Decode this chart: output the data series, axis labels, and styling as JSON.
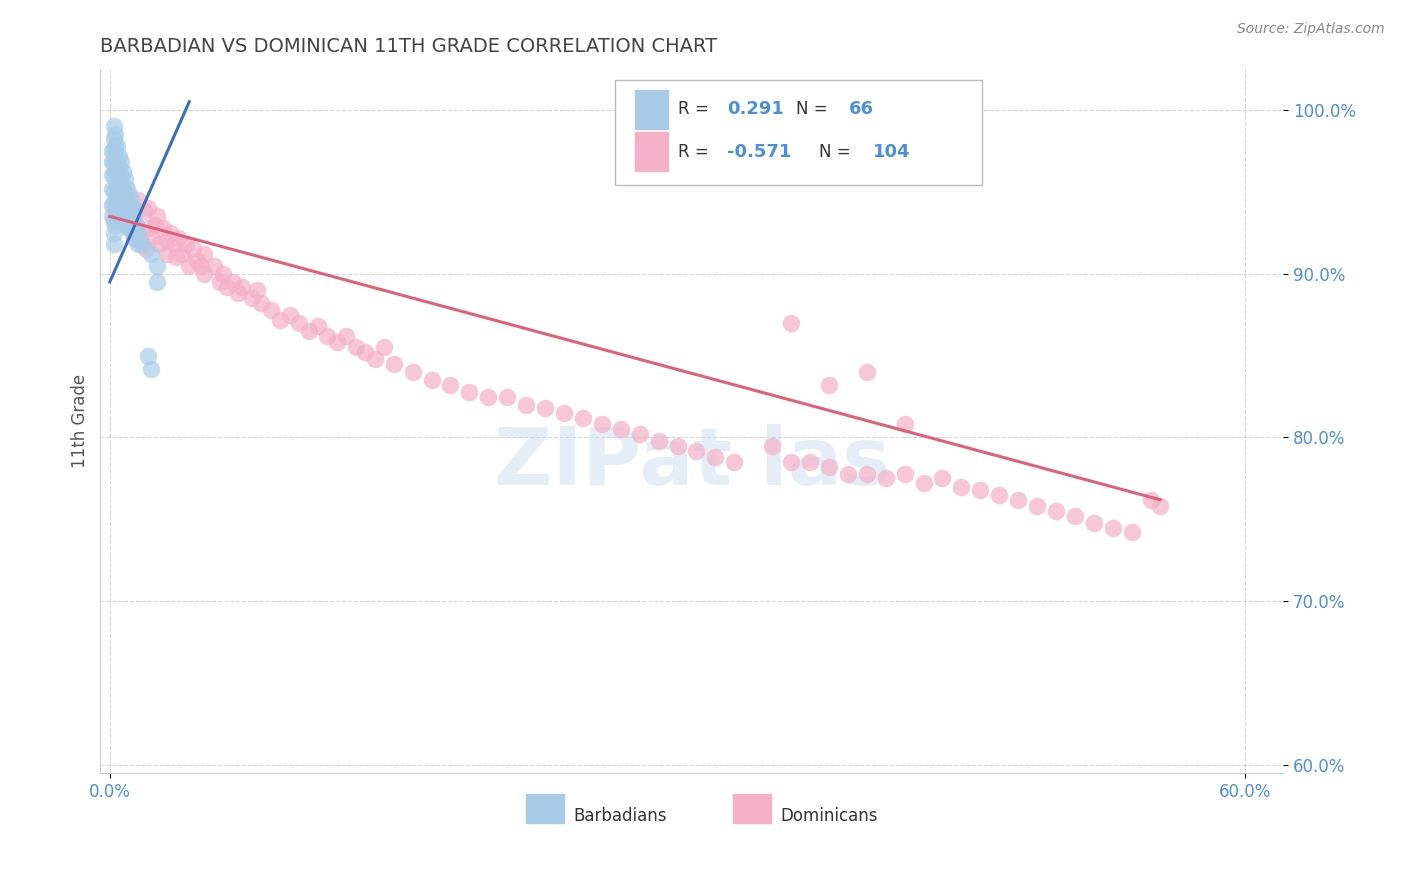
{
  "title": "BARBADIAN VS DOMINICAN 11TH GRADE CORRELATION CHART",
  "ylabel": "11th Grade",
  "source": "Source: ZipAtlas.com",
  "xlim": [
    -0.005,
    0.62
  ],
  "ylim": [
    0.595,
    1.025
  ],
  "x_tick_positions": [
    0.0,
    0.6
  ],
  "x_tick_labels": [
    "0.0%",
    "60.0%"
  ],
  "y_tick_positions": [
    0.6,
    0.7,
    0.8,
    0.9,
    1.0
  ],
  "y_tick_labels": [
    "60.0%",
    "70.0%",
    "80.0%",
    "90.0%",
    "100.0%"
  ],
  "barbadian_color": "#a8cce8",
  "dominican_color": "#f4b0c8",
  "trend_blue": "#3a6fbf",
  "trend_pink": "#e0607a",
  "r_barbadian": "0.291",
  "n_barbadian": "66",
  "r_dominican": "-0.571",
  "n_dominican": "104",
  "legend_label_barbadian": "Barbadians",
  "legend_label_dominican": "Dominicans",
  "barbadian_x": [
    0.001,
    0.001,
    0.001,
    0.001,
    0.001,
    0.001,
    0.002,
    0.002,
    0.002,
    0.002,
    0.002,
    0.002,
    0.002,
    0.002,
    0.002,
    0.002,
    0.003,
    0.003,
    0.003,
    0.003,
    0.003,
    0.003,
    0.003,
    0.003,
    0.004,
    0.004,
    0.004,
    0.004,
    0.004,
    0.004,
    0.005,
    0.005,
    0.005,
    0.005,
    0.005,
    0.006,
    0.006,
    0.006,
    0.006,
    0.007,
    0.007,
    0.007,
    0.008,
    0.008,
    0.008,
    0.009,
    0.009,
    0.009,
    0.01,
    0.01,
    0.01,
    0.011,
    0.011,
    0.012,
    0.012,
    0.013,
    0.013,
    0.014,
    0.015,
    0.015,
    0.017,
    0.02,
    0.022,
    0.025,
    0.025,
    0.022
  ],
  "barbadian_y": [
    0.975,
    0.968,
    0.96,
    0.952,
    0.942,
    0.935,
    0.99,
    0.982,
    0.975,
    0.968,
    0.96,
    0.95,
    0.942,
    0.932,
    0.925,
    0.918,
    0.985,
    0.978,
    0.97,
    0.962,
    0.952,
    0.945,
    0.938,
    0.93,
    0.978,
    0.97,
    0.962,
    0.954,
    0.945,
    0.935,
    0.972,
    0.965,
    0.957,
    0.948,
    0.938,
    0.968,
    0.96,
    0.95,
    0.94,
    0.962,
    0.953,
    0.942,
    0.958,
    0.948,
    0.938,
    0.952,
    0.942,
    0.93,
    0.948,
    0.938,
    0.928,
    0.945,
    0.932,
    0.94,
    0.928,
    0.935,
    0.922,
    0.93,
    0.925,
    0.918,
    0.918,
    0.85,
    0.842,
    0.905,
    0.895,
    0.912
  ],
  "dominican_x": [
    0.004,
    0.005,
    0.006,
    0.007,
    0.008,
    0.009,
    0.01,
    0.01,
    0.012,
    0.013,
    0.014,
    0.015,
    0.016,
    0.018,
    0.019,
    0.02,
    0.02,
    0.022,
    0.024,
    0.025,
    0.026,
    0.028,
    0.03,
    0.03,
    0.032,
    0.034,
    0.035,
    0.036,
    0.038,
    0.04,
    0.042,
    0.044,
    0.046,
    0.048,
    0.05,
    0.05,
    0.055,
    0.058,
    0.06,
    0.062,
    0.065,
    0.068,
    0.07,
    0.075,
    0.078,
    0.08,
    0.085,
    0.09,
    0.095,
    0.1,
    0.105,
    0.11,
    0.115,
    0.12,
    0.125,
    0.13,
    0.135,
    0.14,
    0.145,
    0.15,
    0.16,
    0.17,
    0.18,
    0.19,
    0.2,
    0.21,
    0.22,
    0.23,
    0.24,
    0.25,
    0.26,
    0.27,
    0.28,
    0.29,
    0.3,
    0.31,
    0.32,
    0.33,
    0.35,
    0.36,
    0.37,
    0.38,
    0.39,
    0.4,
    0.41,
    0.42,
    0.43,
    0.44,
    0.45,
    0.46,
    0.47,
    0.48,
    0.49,
    0.5,
    0.51,
    0.52,
    0.53,
    0.54,
    0.55,
    0.555,
    0.36,
    0.38,
    0.4,
    0.42
  ],
  "dominican_y": [
    0.95,
    0.942,
    0.938,
    0.948,
    0.935,
    0.93,
    0.928,
    0.938,
    0.925,
    0.932,
    0.928,
    0.945,
    0.92,
    0.938,
    0.915,
    0.928,
    0.94,
    0.922,
    0.93,
    0.935,
    0.918,
    0.928,
    0.92,
    0.912,
    0.925,
    0.918,
    0.91,
    0.922,
    0.912,
    0.918,
    0.905,
    0.915,
    0.908,
    0.905,
    0.912,
    0.9,
    0.905,
    0.895,
    0.9,
    0.892,
    0.895,
    0.888,
    0.892,
    0.885,
    0.89,
    0.882,
    0.878,
    0.872,
    0.875,
    0.87,
    0.865,
    0.868,
    0.862,
    0.858,
    0.862,
    0.855,
    0.852,
    0.848,
    0.855,
    0.845,
    0.84,
    0.835,
    0.832,
    0.828,
    0.825,
    0.825,
    0.82,
    0.818,
    0.815,
    0.812,
    0.808,
    0.805,
    0.802,
    0.798,
    0.795,
    0.792,
    0.788,
    0.785,
    0.795,
    0.785,
    0.785,
    0.782,
    0.778,
    0.778,
    0.775,
    0.778,
    0.772,
    0.775,
    0.77,
    0.768,
    0.765,
    0.762,
    0.758,
    0.755,
    0.752,
    0.748,
    0.745,
    0.742,
    0.762,
    0.758,
    0.87,
    0.832,
    0.84,
    0.808
  ],
  "blue_trend_x": [
    0.0,
    0.042
  ],
  "blue_trend_y": [
    0.895,
    1.005
  ],
  "pink_trend_x": [
    0.0,
    0.555
  ],
  "pink_trend_y": [
    0.935,
    0.762
  ],
  "watermark_text": "ZIPat las",
  "background_color": "#ffffff",
  "grid_color": "#cccccc",
  "axis_color": "#4a90d9",
  "title_color": "#444444",
  "source_color": "#888888"
}
